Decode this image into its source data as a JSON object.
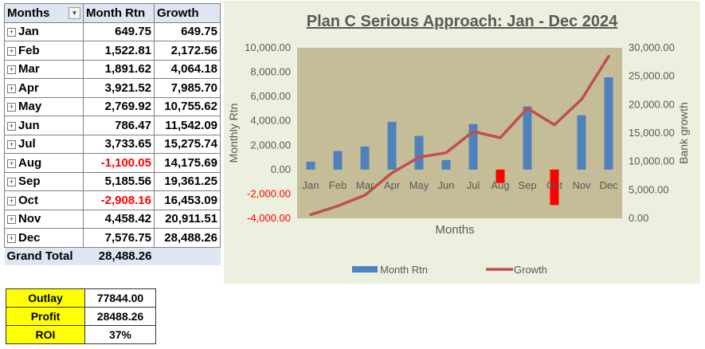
{
  "pivot": {
    "headers": [
      "Months",
      "Month Rtn",
      "Growth"
    ],
    "rows": [
      {
        "month": "Jan",
        "rtn": "649.75",
        "growth": "649.75",
        "negative": false
      },
      {
        "month": "Feb",
        "rtn": "1,522.81",
        "growth": "2,172.56",
        "negative": false
      },
      {
        "month": "Mar",
        "rtn": "1,891.62",
        "growth": "4,064.18",
        "negative": false
      },
      {
        "month": "Apr",
        "rtn": "3,921.52",
        "growth": "7,985.70",
        "negative": false
      },
      {
        "month": "May",
        "rtn": "2,769.92",
        "growth": "10,755.62",
        "negative": false
      },
      {
        "month": "Jun",
        "rtn": "786.47",
        "growth": "11,542.09",
        "negative": false
      },
      {
        "month": "Jul",
        "rtn": "3,733.65",
        "growth": "15,275.74",
        "negative": false
      },
      {
        "month": "Aug",
        "rtn": "-1,100.05",
        "growth": "14,175.69",
        "negative": true
      },
      {
        "month": "Sep",
        "rtn": "5,185.56",
        "growth": "19,361.25",
        "negative": false
      },
      {
        "month": "Oct",
        "rtn": "-2,908.16",
        "growth": "16,453.09",
        "negative": true
      },
      {
        "month": "Nov",
        "rtn": "4,458.42",
        "growth": "20,911.51",
        "negative": false
      },
      {
        "month": "Dec",
        "rtn": "7,576.75",
        "growth": "28,488.26",
        "negative": false
      }
    ],
    "total_label": "Grand Total",
    "total_value": "28,488.26"
  },
  "summary": {
    "rows": [
      {
        "label": "Outlay",
        "value": "77844.00"
      },
      {
        "label": "Profit",
        "value": "28488.26"
      },
      {
        "label": "ROI",
        "value": "37%"
      }
    ]
  },
  "colors": {
    "bar": "#4f81bd",
    "bar_negative": "#ff0000",
    "line": "#c0504d",
    "plot_bg": "#c4bd97",
    "chart_bg": "#ebf1de",
    "header_bg": "#dde6f2",
    "summary_bg": "#ffff00"
  },
  "chart_data": {
    "type": "bar",
    "title": "Plan C Serious Approach: Jan - Dec 2024",
    "xlabel": "Months",
    "ylabel": "Monthly Rtn",
    "y2label": "Bank growth",
    "categories": [
      "Jan",
      "Feb",
      "Mar",
      "Apr",
      "May",
      "Jun",
      "Jul",
      "Aug",
      "Sep",
      "Oct",
      "Nov",
      "Dec"
    ],
    "ylim": [
      -4000,
      10000
    ],
    "y2lim": [
      0,
      30000
    ],
    "y_ticks": [
      "10,000.00",
      "8,000.00",
      "6,000.00",
      "4,000.00",
      "2,000.00",
      "0.00",
      "-2,000.00",
      "-4,000.00"
    ],
    "y2_ticks": [
      "30,000.00",
      "25,000.00",
      "20,000.00",
      "15,000.00",
      "10,000.00",
      "5,000.00",
      "0.00"
    ],
    "legend_position": "bottom",
    "series": [
      {
        "name": "Month Rtn",
        "type": "bar",
        "axis": "left",
        "values": [
          649.75,
          1522.81,
          1891.62,
          3921.52,
          2769.92,
          786.47,
          3733.65,
          -1100.05,
          5185.56,
          -2908.16,
          4458.42,
          7576.75
        ]
      },
      {
        "name": "Growth",
        "type": "line",
        "axis": "right",
        "values": [
          649.75,
          2172.56,
          4064.18,
          7985.7,
          10755.62,
          11542.09,
          15275.74,
          14175.69,
          19361.25,
          16453.09,
          20911.51,
          28488.26
        ]
      }
    ]
  }
}
